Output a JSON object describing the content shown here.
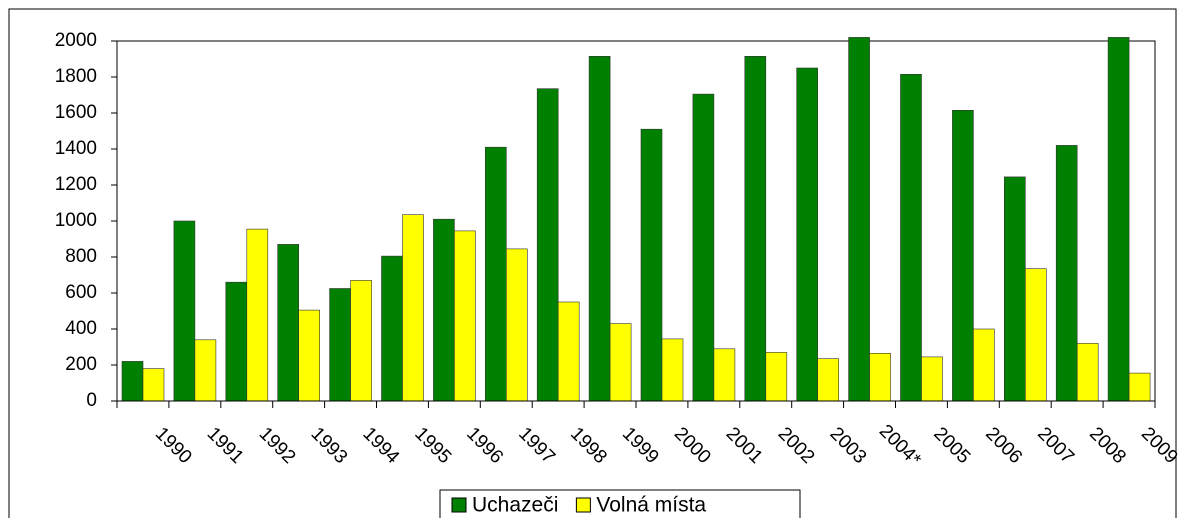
{
  "chart_data": {
    "type": "bar",
    "categories": [
      "1990",
      "1991",
      "1992",
      "1993",
      "1994",
      "1995",
      "1996",
      "1997",
      "1998",
      "1999",
      "2000",
      "2001",
      "2002",
      "2003",
      "2004*",
      "2005",
      "2006",
      "2007",
      "2008",
      "2009"
    ],
    "series": [
      {
        "name": "Uchazeči",
        "color": "#008000",
        "values": [
          220,
          1000,
          660,
          870,
          625,
          805,
          1010,
          1410,
          1735,
          1915,
          1510,
          1705,
          1915,
          1850,
          2020,
          1815,
          1615,
          1245,
          1420,
          2020
        ]
      },
      {
        "name": "Volná místa",
        "color": "#ffff00",
        "values": [
          180,
          340,
          955,
          505,
          670,
          1035,
          945,
          845,
          550,
          430,
          345,
          290,
          270,
          235,
          265,
          245,
          400,
          735,
          320,
          155
        ]
      }
    ],
    "ylim": [
      0,
      2000
    ],
    "yticks": [
      0,
      200,
      400,
      600,
      800,
      1000,
      1200,
      1400,
      1600,
      1800,
      2000
    ],
    "legend": "bottom"
  }
}
